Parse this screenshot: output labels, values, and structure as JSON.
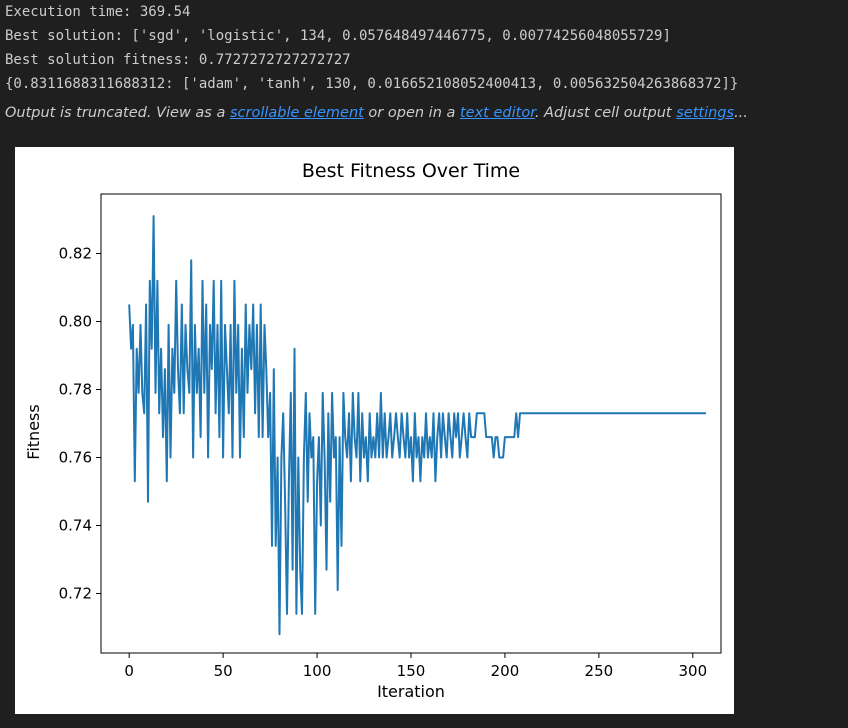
{
  "output": {
    "lines": [
      "Execution time: 369.54",
      "Best solution: ['sgd', 'logistic', 134, 0.057648497446775, 0.00774256048055729]",
      "Best solution fitness: 0.7727272727272727",
      "{0.8311688311688312: ['adam', 'tanh', 130, 0.016652108052400413, 0.005632504263868372]}"
    ],
    "truncation": {
      "prefix": "Output is truncated. View as a ",
      "link1": "scrollable element",
      "middle": " or open in a ",
      "link2": "text editor",
      "middle2": ". Adjust cell output ",
      "link3": "settings",
      "suffix": "..."
    }
  },
  "colors": {
    "background": "#1f1f1f",
    "link": "#3794ff",
    "line": "#1f77b4"
  },
  "chart_data": {
    "type": "line",
    "title": "Best Fitness Over Time",
    "xlabel": "Iteration",
    "ylabel": "Fitness",
    "xlim": [
      -15,
      315
    ],
    "ylim": [
      0.7025,
      0.8375
    ],
    "xticks": [
      0,
      50,
      100,
      150,
      200,
      250,
      300
    ],
    "yticks": [
      0.72,
      0.74,
      0.76,
      0.78,
      0.8,
      0.82
    ],
    "ytick_labels": [
      "0.72",
      "0.74",
      "0.76",
      "0.78",
      "0.80",
      "0.82"
    ],
    "grid": false,
    "series": [
      {
        "values": [
          0.805,
          0.792,
          0.799,
          0.753,
          0.792,
          0.779,
          0.799,
          0.779,
          0.773,
          0.805,
          0.747,
          0.812,
          0.792,
          0.831,
          0.779,
          0.812,
          0.773,
          0.792,
          0.766,
          0.786,
          0.753,
          0.799,
          0.76,
          0.792,
          0.779,
          0.812,
          0.786,
          0.773,
          0.805,
          0.773,
          0.799,
          0.786,
          0.779,
          0.818,
          0.76,
          0.799,
          0.779,
          0.792,
          0.766,
          0.812,
          0.779,
          0.805,
          0.76,
          0.799,
          0.786,
          0.812,
          0.773,
          0.799,
          0.766,
          0.812,
          0.76,
          0.799,
          0.786,
          0.773,
          0.799,
          0.76,
          0.812,
          0.779,
          0.799,
          0.76,
          0.792,
          0.766,
          0.805,
          0.779,
          0.799,
          0.786,
          0.805,
          0.773,
          0.799,
          0.766,
          0.805,
          0.766,
          0.799,
          0.786,
          0.766,
          0.779,
          0.734,
          0.786,
          0.734,
          0.76,
          0.708,
          0.76,
          0.773,
          0.747,
          0.714,
          0.753,
          0.779,
          0.727,
          0.792,
          0.714,
          0.76,
          0.727,
          0.714,
          0.76,
          0.779,
          0.747,
          0.773,
          0.76,
          0.766,
          0.714,
          0.753,
          0.766,
          0.74,
          0.779,
          0.76,
          0.727,
          0.773,
          0.747,
          0.779,
          0.76,
          0.766,
          0.721,
          0.766,
          0.734,
          0.779,
          0.766,
          0.76,
          0.773,
          0.753,
          0.779,
          0.766,
          0.76,
          0.779,
          0.753,
          0.773,
          0.76,
          0.766,
          0.753,
          0.773,
          0.76,
          0.766,
          0.76,
          0.773,
          0.76,
          0.779,
          0.76,
          0.773,
          0.76,
          0.766,
          0.773,
          0.76,
          0.766,
          0.773,
          0.766,
          0.76,
          0.773,
          0.766,
          0.76,
          0.773,
          0.76,
          0.766,
          0.753,
          0.773,
          0.76,
          0.766,
          0.753,
          0.766,
          0.76,
          0.773,
          0.76,
          0.766,
          0.76,
          0.773,
          0.753,
          0.766,
          0.773,
          0.76,
          0.773,
          0.766,
          0.76,
          0.773,
          0.766,
          0.76,
          0.773,
          0.766,
          0.773,
          0.76,
          0.766,
          0.773,
          0.766,
          0.76,
          0.773,
          0.766,
          0.766,
          0.766,
          0.773,
          0.773,
          0.773,
          0.773,
          0.773,
          0.766,
          0.766,
          0.766,
          0.766,
          0.76,
          0.766,
          0.766,
          0.76,
          0.76,
          0.76,
          0.766,
          0.766,
          0.766,
          0.766,
          0.766,
          0.766,
          0.773,
          0.766,
          0.773,
          0.773,
          0.773,
          0.773,
          0.773,
          0.773,
          0.773,
          0.773,
          0.773,
          0.773,
          0.773,
          0.773,
          0.773,
          0.773,
          0.773,
          0.773,
          0.773,
          0.773,
          0.773,
          0.773,
          0.773,
          0.773,
          0.773,
          0.773,
          0.773,
          0.773,
          0.773,
          0.773,
          0.773,
          0.773,
          0.773,
          0.773,
          0.773,
          0.773,
          0.773,
          0.773,
          0.773,
          0.773,
          0.773,
          0.773,
          0.773,
          0.773,
          0.773,
          0.773,
          0.773,
          0.773,
          0.773,
          0.773,
          0.773,
          0.773,
          0.773,
          0.773,
          0.773,
          0.773,
          0.773,
          0.773,
          0.773,
          0.773,
          0.773,
          0.773,
          0.773,
          0.773,
          0.773,
          0.773,
          0.773,
          0.773,
          0.773,
          0.773,
          0.773,
          0.773,
          0.773,
          0.773,
          0.773,
          0.773,
          0.773,
          0.773,
          0.773,
          0.773,
          0.773,
          0.773,
          0.773,
          0.773,
          0.773,
          0.773,
          0.773,
          0.773,
          0.773,
          0.773,
          0.773,
          0.773,
          0.773,
          0.773,
          0.773,
          0.773,
          0.773,
          0.773,
          0.773,
          0.773,
          0.773,
          0.773
        ]
      }
    ]
  }
}
